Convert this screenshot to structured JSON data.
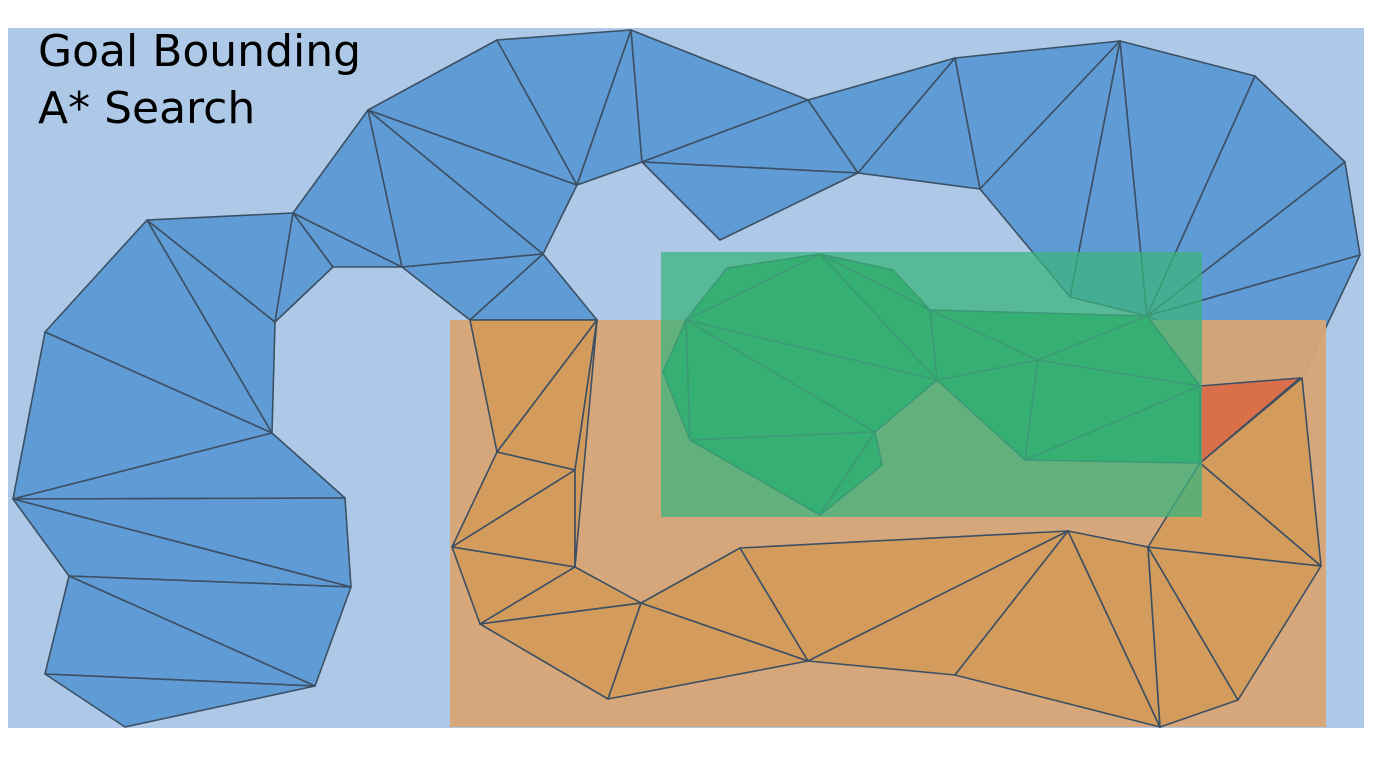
{
  "title": {
    "line1": "Goal Bounding",
    "line2": "A* Search"
  },
  "colors": {
    "background": "#adc9e7",
    "mesh_fill": "#5f9cd5",
    "mesh_stroke": "#3c4f63",
    "orange_region": "#d7a575",
    "orange_triangles": "#d39c5c",
    "green_region": "#3bb37c",
    "green_triangles": "#29a454",
    "red_triangle": "#d9704a"
  },
  "regions": [
    {
      "name": "orange-bounding-box",
      "color": "#d7a575",
      "opacity": 0.95
    },
    {
      "name": "green-bounding-box",
      "color": "#3bb37c",
      "opacity": 0.75
    }
  ]
}
